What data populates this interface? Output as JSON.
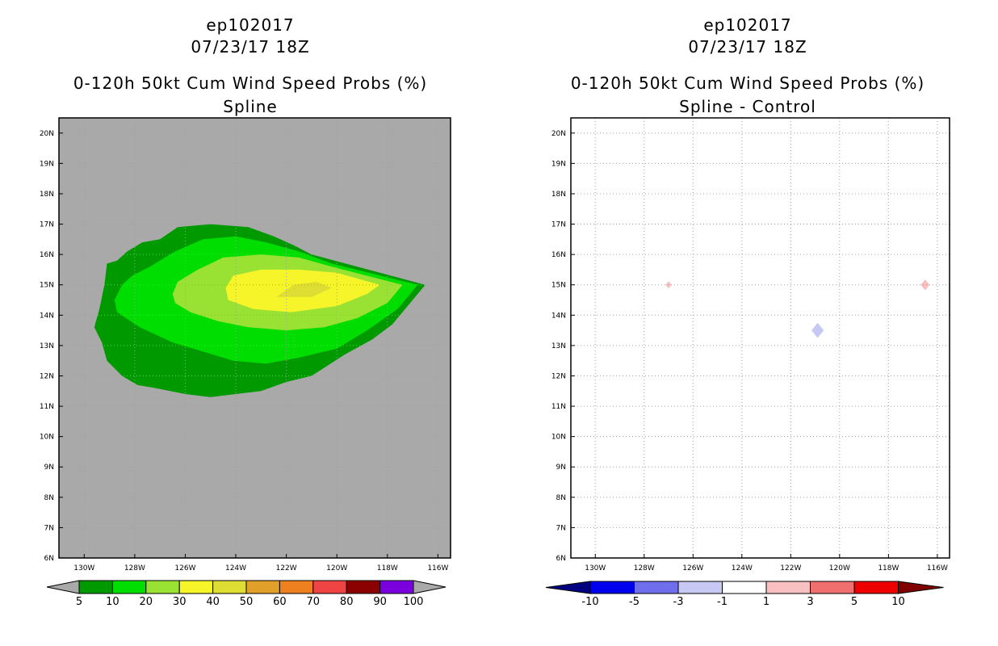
{
  "left_panel": {
    "storm_id": "ep102017",
    "datetime": "07/23/17 18Z",
    "product": "0-120h 50kt Cum Wind Speed Probs (%)",
    "subtitle": "Spline"
  },
  "right_panel": {
    "storm_id": "ep102017",
    "datetime": "07/23/17 18Z",
    "product": "0-120h 50kt Cum Wind Speed Probs (%)",
    "subtitle": "Spline - Control"
  },
  "chart_data": [
    {
      "type": "heatmap",
      "name": "spline",
      "title": "0-120h 50kt Cum Wind Speed Probs (%)",
      "subtitle": "Spline",
      "xlim": [
        -131,
        -115.5
      ],
      "ylim": [
        6,
        20.5
      ],
      "xticks": [
        -130,
        -128,
        -126,
        -124,
        -122,
        -120,
        -118,
        -116
      ],
      "xtick_labels": [
        "130W",
        "128W",
        "126W",
        "124W",
        "122W",
        "120W",
        "118W",
        "116W"
      ],
      "yticks": [
        6,
        7,
        8,
        9,
        10,
        11,
        12,
        13,
        14,
        15,
        16,
        17,
        18,
        19,
        20
      ],
      "ytick_labels": [
        "6N",
        "7N",
        "8N",
        "9N",
        "10N",
        "11N",
        "12N",
        "13N",
        "14N",
        "15N",
        "16N",
        "17N",
        "18N",
        "19N",
        "20N"
      ],
      "grid": true,
      "background": "#a9a9a9",
      "levels": [
        5,
        10,
        20,
        30,
        40,
        50,
        60,
        70,
        80,
        90,
        100
      ],
      "colors": [
        "#009900",
        "#00dd00",
        "#99e233",
        "#f5f52a",
        "#dddd33",
        "#e0a02a",
        "#ee8020",
        "#ee4444",
        "#8b0000",
        "#7a00dd"
      ],
      "colorbar_labels": [
        "5",
        "10",
        "20",
        "30",
        "40",
        "50",
        "60",
        "70",
        "80",
        "90",
        "100"
      ],
      "contours": [
        {
          "level": 5,
          "lonlat": [
            [
              -127.9,
              11.7
            ],
            [
              -128.5,
              12.0
            ],
            [
              -129.1,
              12.5
            ],
            [
              -129.3,
              13.1
            ],
            [
              -129.6,
              13.6
            ],
            [
              -129.4,
              14.2
            ],
            [
              -129.2,
              15.0
            ],
            [
              -129.1,
              15.7
            ],
            [
              -128.7,
              15.8
            ],
            [
              -128.3,
              16.1
            ],
            [
              -127.7,
              16.4
            ],
            [
              -127.0,
              16.5
            ],
            [
              -126.3,
              16.9
            ],
            [
              -125.0,
              17.0
            ],
            [
              -123.5,
              16.9
            ],
            [
              -122.5,
              16.6
            ],
            [
              -121.7,
              16.3
            ],
            [
              -121.0,
              16.0
            ],
            [
              -116.5,
              15.0
            ],
            [
              -117.8,
              13.7
            ],
            [
              -118.6,
              13.2
            ],
            [
              -119.7,
              12.7
            ],
            [
              -121.0,
              12.0
            ],
            [
              -122.0,
              11.8
            ],
            [
              -123.0,
              11.5
            ],
            [
              -124.0,
              11.4
            ],
            [
              -125.0,
              11.3
            ],
            [
              -126.0,
              11.4
            ],
            [
              -127.2,
              11.6
            ]
          ]
        },
        {
          "level": 10,
          "lonlat": [
            [
              -128.8,
              14.5
            ],
            [
              -128.5,
              15.0
            ],
            [
              -128.1,
              15.3
            ],
            [
              -127.4,
              15.6
            ],
            [
              -126.4,
              16.1
            ],
            [
              -125.3,
              16.5
            ],
            [
              -124.0,
              16.6
            ],
            [
              -122.8,
              16.4
            ],
            [
              -121.5,
              16.1
            ],
            [
              -120.2,
              15.7
            ],
            [
              -116.8,
              15.0
            ],
            [
              -117.6,
              14.2
            ],
            [
              -118.8,
              13.5
            ],
            [
              -120.0,
              12.9
            ],
            [
              -121.5,
              12.6
            ],
            [
              -122.8,
              12.4
            ],
            [
              -124.1,
              12.5
            ],
            [
              -125.3,
              12.8
            ],
            [
              -126.5,
              13.1
            ],
            [
              -127.8,
              13.6
            ],
            [
              -128.7,
              14.1
            ]
          ]
        },
        {
          "level": 20,
          "lonlat": [
            [
              -126.5,
              14.7
            ],
            [
              -126.3,
              15.1
            ],
            [
              -125.5,
              15.5
            ],
            [
              -124.5,
              15.9
            ],
            [
              -123.0,
              16.0
            ],
            [
              -121.5,
              15.9
            ],
            [
              -120.2,
              15.6
            ],
            [
              -117.4,
              15.0
            ],
            [
              -118.0,
              14.4
            ],
            [
              -119.2,
              13.9
            ],
            [
              -120.5,
              13.6
            ],
            [
              -122.0,
              13.5
            ],
            [
              -123.5,
              13.6
            ],
            [
              -124.7,
              13.8
            ],
            [
              -125.8,
              14.1
            ],
            [
              -126.4,
              14.4
            ]
          ]
        },
        {
          "level": 30,
          "lonlat": [
            [
              -124.4,
              14.9
            ],
            [
              -124.1,
              15.3
            ],
            [
              -123.0,
              15.5
            ],
            [
              -121.5,
              15.5
            ],
            [
              -120.0,
              15.4
            ],
            [
              -118.3,
              15.0
            ],
            [
              -118.8,
              14.7
            ],
            [
              -120.0,
              14.3
            ],
            [
              -121.8,
              14.1
            ],
            [
              -123.3,
              14.2
            ],
            [
              -124.3,
              14.5
            ]
          ]
        },
        {
          "level": 40,
          "lonlat": [
            [
              -122.4,
              14.6
            ],
            [
              -121.7,
              15.0
            ],
            [
              -120.8,
              15.1
            ],
            [
              -120.2,
              14.9
            ],
            [
              -121.0,
              14.6
            ]
          ]
        }
      ]
    },
    {
      "type": "heatmap",
      "name": "spline_minus_control",
      "title": "0-120h 50kt Cum Wind Speed Probs (%)",
      "subtitle": "Spline - Control",
      "xlim": [
        -131,
        -115.5
      ],
      "ylim": [
        6,
        20.5
      ],
      "xticks": [
        -130,
        -128,
        -126,
        -124,
        -122,
        -120,
        -118,
        -116
      ],
      "xtick_labels": [
        "130W",
        "128W",
        "126W",
        "124W",
        "122W",
        "120W",
        "118W",
        "116W"
      ],
      "yticks": [
        6,
        7,
        8,
        9,
        10,
        11,
        12,
        13,
        14,
        15,
        16,
        17,
        18,
        19,
        20
      ],
      "ytick_labels": [
        "6N",
        "7N",
        "8N",
        "9N",
        "10N",
        "11N",
        "12N",
        "13N",
        "14N",
        "15N",
        "16N",
        "17N",
        "18N",
        "19N",
        "20N"
      ],
      "grid": true,
      "background": "#ffffff",
      "levels": [
        -10,
        -5,
        -3,
        -1,
        1,
        3,
        5,
        10
      ],
      "colors": [
        "#000080",
        "#0000ee",
        "#6f6fee",
        "#c8c8f5",
        "#ffffff",
        "#f8c0c0",
        "#f07070",
        "#ee0000",
        "#800000"
      ],
      "colorbar_labels": [
        "-10",
        "-5",
        "-3",
        "-1",
        "1",
        "3",
        "5",
        "10"
      ],
      "features": [
        {
          "lon": -127.0,
          "lat": 15.0,
          "value": 2,
          "size": 0.12
        },
        {
          "lon": -116.5,
          "lat": 15.0,
          "value": 2,
          "size": 0.18
        },
        {
          "lon": -120.9,
          "lat": 13.5,
          "value": -2,
          "size": 0.25
        }
      ]
    }
  ]
}
